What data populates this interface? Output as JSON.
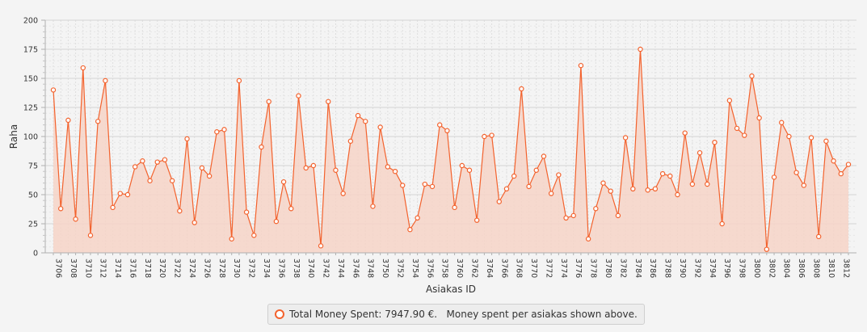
{
  "colors": {
    "series": "#f3622d",
    "area_fill": "#f6d3c7",
    "plot_background": "#f4f4f4",
    "grid": "#dedede",
    "axis_text": "#333333"
  },
  "legend": {
    "label": "Total Money Spent: 7947.90 €.   Money spent per asiakas shown above.",
    "icon": "circle-marker-icon"
  },
  "chart_data": {
    "type": "area",
    "title": "",
    "xlabel": "Asiakas ID",
    "ylabel": "Raha",
    "ylim": [
      0,
      200
    ],
    "yticks": [
      0,
      25,
      50,
      75,
      100,
      125,
      150,
      175,
      200
    ],
    "grid": true,
    "legend_position": "bottom",
    "x": [
      3706,
      3707,
      3708,
      3709,
      3710,
      3711,
      3712,
      3713,
      3714,
      3715,
      3716,
      3717,
      3718,
      3719,
      3720,
      3721,
      3722,
      3723,
      3724,
      3725,
      3726,
      3727,
      3728,
      3729,
      3730,
      3731,
      3732,
      3733,
      3734,
      3735,
      3736,
      3737,
      3738,
      3739,
      3740,
      3741,
      3742,
      3743,
      3744,
      3745,
      3746,
      3747,
      3748,
      3749,
      3750,
      3751,
      3752,
      3753,
      3754,
      3755,
      3756,
      3757,
      3758,
      3759,
      3760,
      3761,
      3762,
      3763,
      3764,
      3765,
      3766,
      3767,
      3768,
      3769,
      3770,
      3771,
      3772,
      3773,
      3774,
      3775,
      3776,
      3777,
      3778,
      3779,
      3780,
      3781,
      3782,
      3783,
      3784,
      3785,
      3786,
      3787,
      3788,
      3789,
      3790,
      3791,
      3792,
      3793,
      3794,
      3795,
      3796,
      3797,
      3798,
      3799,
      3800,
      3801,
      3802,
      3803,
      3804,
      3805,
      3806,
      3807,
      3808,
      3809,
      3810,
      3811,
      3812,
      3813
    ],
    "xtick_labels": [
      "3706",
      "3708",
      "3710",
      "3712",
      "3714",
      "3716",
      "3718",
      "3720",
      "3722",
      "3724",
      "3726",
      "3728",
      "3730",
      "3732",
      "3734",
      "3736",
      "3738",
      "3740",
      "3742",
      "3744",
      "3746",
      "3748",
      "3750",
      "3752",
      "3754",
      "3756",
      "3758",
      "3760",
      "3762",
      "3764",
      "3766",
      "3768",
      "3770",
      "3772",
      "3774",
      "3776",
      "3778",
      "3780",
      "3782",
      "3784",
      "3786",
      "3788",
      "3790",
      "3792",
      "3794",
      "3796",
      "3798",
      "3800",
      "3802",
      "3804",
      "3806",
      "3808",
      "3810",
      "3812"
    ],
    "series": [
      {
        "values": [
          140,
          38,
          114,
          29,
          159,
          15,
          113,
          148,
          39,
          51,
          50,
          74,
          79,
          62,
          78,
          80,
          62,
          36,
          98,
          26,
          73,
          66,
          104,
          106,
          12,
          148,
          35,
          15,
          91,
          130,
          27,
          61,
          38,
          135,
          73,
          75,
          6,
          130,
          71,
          51,
          96,
          118,
          113,
          40,
          108,
          74,
          70,
          58,
          20,
          30,
          59,
          57,
          110,
          105,
          39,
          75,
          71,
          28,
          100,
          101,
          44,
          55,
          66,
          141,
          57,
          71,
          83,
          51,
          67,
          30,
          32,
          161,
          12,
          38,
          60,
          53,
          32,
          99,
          55,
          175,
          54,
          55,
          68,
          66,
          50,
          103,
          59,
          86,
          59,
          95,
          25,
          131,
          107,
          101,
          152,
          116,
          3,
          65,
          112,
          100,
          69,
          58,
          99,
          14,
          96,
          79,
          68,
          76
        ]
      }
    ]
  }
}
